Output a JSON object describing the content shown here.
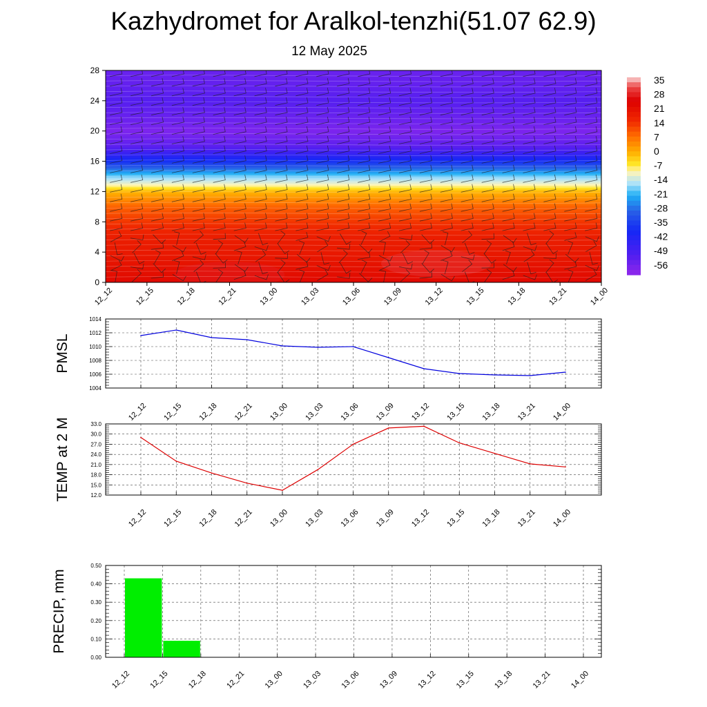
{
  "header": {
    "title": "Kazhydromet for Aralkol-tenzhi(51.07 62.9)",
    "subtitle": "12 May 2025"
  },
  "colors": {
    "pmsl_line": "#0000dd",
    "temp_line": "#dd0000",
    "precip_bar": "#00ee00"
  },
  "chart_data": [
    {
      "id": "cross-section",
      "type": "heatmap",
      "title": "",
      "x": [
        "12_12",
        "12_15",
        "12_18",
        "12_21",
        "13_00",
        "13_03",
        "13_06",
        "13_09",
        "13_12",
        "13_15",
        "13_18",
        "13_21",
        "14_00"
      ],
      "y_ticks": [
        0,
        4,
        8,
        12,
        16,
        20,
        24,
        28
      ],
      "ylim": [
        0,
        28
      ],
      "colorbar": {
        "labels": [
          "35",
          "28",
          "21",
          "14",
          "7",
          "0",
          "-7",
          "-14",
          "-21",
          "-28",
          "-35",
          "-42",
          "-49",
          "-56"
        ],
        "range": [
          -60,
          38
        ]
      },
      "temperature_profile": [
        {
          "level": 0,
          "value": 24
        },
        {
          "level": 2,
          "value": 22
        },
        {
          "level": 4,
          "value": 20
        },
        {
          "level": 6,
          "value": 19
        },
        {
          "level": 8,
          "value": 15
        },
        {
          "level": 10,
          "value": 10
        },
        {
          "level": 12,
          "value": 0
        },
        {
          "level": 13,
          "value": -10
        },
        {
          "level": 14,
          "value": -17
        },
        {
          "level": 15,
          "value": -27
        },
        {
          "level": 16,
          "value": -37
        },
        {
          "level": 17,
          "value": -45
        },
        {
          "level": 18,
          "value": -52
        },
        {
          "level": 20,
          "value": -57
        },
        {
          "level": 21,
          "value": -55
        },
        {
          "level": 24,
          "value": -51
        },
        {
          "level": 26,
          "value": -53
        },
        {
          "level": 28,
          "value": -54
        }
      ],
      "warm_spots": [
        {
          "x": "12_21",
          "level": 1,
          "value": 29
        },
        {
          "x": "13_12",
          "level": 2.5,
          "value": 31
        }
      ],
      "wind_barbs": true,
      "grid": false
    },
    {
      "id": "pmsl",
      "type": "line",
      "ylabel": "PMSL",
      "ylim": [
        1004,
        1014
      ],
      "y_ticks": [
        "1004",
        "1006",
        "1008",
        "1010",
        "1012",
        "1014"
      ],
      "x": [
        "12_12",
        "12_15",
        "12_18",
        "12_21",
        "13_00",
        "13_03",
        "13_06",
        "13_09",
        "13_12",
        "13_15",
        "13_18",
        "13_21",
        "14_00"
      ],
      "values": [
        1011.6,
        1012.4,
        1011.3,
        1011.0,
        1010.1,
        1009.9,
        1010.0,
        1008.4,
        1006.8,
        1006.1,
        1005.9,
        1005.8,
        1006.3
      ],
      "grid": true
    },
    {
      "id": "temp",
      "type": "line",
      "ylabel": "TEMP at 2 M",
      "ylim": [
        12,
        33
      ],
      "y_ticks": [
        "12.0",
        "15.0",
        "18.0",
        "21.0",
        "24.0",
        "27.0",
        "30.0",
        "33.0"
      ],
      "x": [
        "12_12",
        "12_15",
        "12_18",
        "12_21",
        "13_00",
        "13_03",
        "13_06",
        "13_09",
        "13_12",
        "13_15",
        "13_18",
        "13_21",
        "14_00"
      ],
      "values": [
        29.0,
        22.0,
        18.5,
        15.5,
        13.4,
        19.5,
        27.0,
        31.8,
        32.3,
        27.4,
        24.3,
        21.2,
        20.3
      ],
      "grid": true
    },
    {
      "id": "precip",
      "type": "bar",
      "ylabel": "PRECIP, mm",
      "ylim": [
        0,
        0.5
      ],
      "y_ticks": [
        "0.00",
        "0.10",
        "0.20",
        "0.30",
        "0.40",
        "0.50"
      ],
      "categories": [
        "12_12",
        "12_15",
        "12_18",
        "12_21",
        "13_00",
        "13_03",
        "13_06",
        "13_09",
        "13_12",
        "13_15",
        "13_18",
        "13_21",
        "14_00"
      ],
      "values": [
        0,
        0.43,
        0.09,
        0,
        0,
        0,
        0,
        0,
        0,
        0,
        0,
        0,
        0
      ],
      "grid": true
    }
  ]
}
